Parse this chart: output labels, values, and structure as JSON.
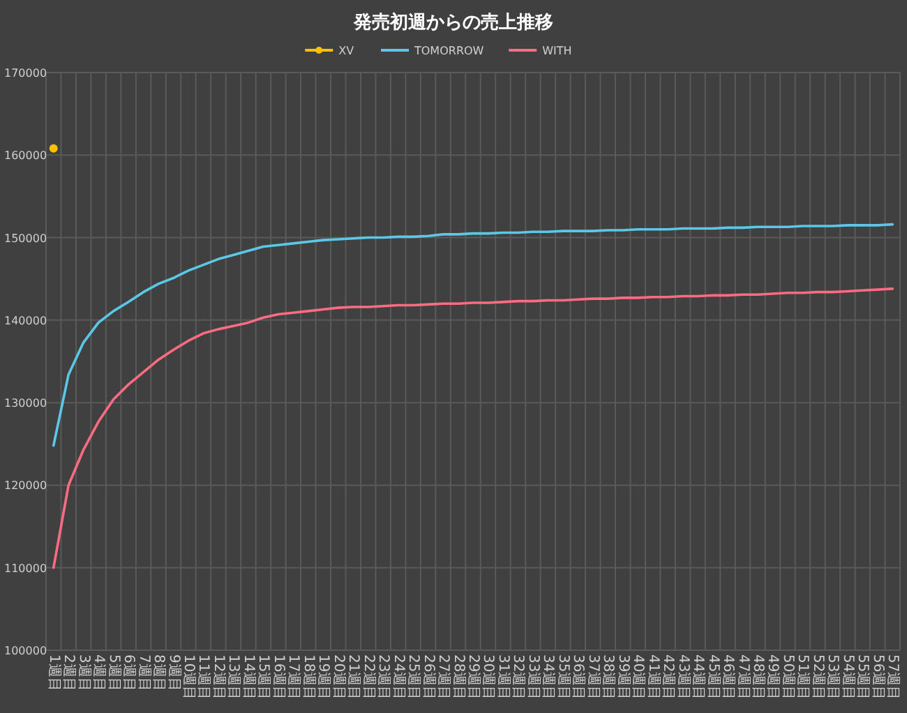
{
  "chart_data": {
    "type": "line",
    "title": "発売初週からの売上推移",
    "categories": [
      "1週目",
      "2週目",
      "3週目",
      "4週目",
      "5週目",
      "6週目",
      "7週目",
      "8週目",
      "9週目",
      "10週目",
      "11週目",
      "12週目",
      "13週目",
      "14週目",
      "15週目",
      "16週目",
      "17週目",
      "18週目",
      "19週目",
      "20週目",
      "21週目",
      "22週目",
      "23週目",
      "24週目",
      "25週目",
      "26週目",
      "27週目",
      "28週目",
      "29週目",
      "30週目",
      "31週目",
      "32週目",
      "33週目",
      "34週目",
      "35週目",
      "36週目",
      "37週目",
      "38週目",
      "39週目",
      "40週目",
      "41週目",
      "42週目",
      "43週目",
      "44週目",
      "45週目",
      "46週目",
      "47週目",
      "48週目",
      "49週目",
      "50週目",
      "51週目",
      "52週目",
      "53週目",
      "54週目",
      "55週目",
      "56週目",
      "57週目"
    ],
    "series": [
      {
        "name": "XV",
        "color": "#ffc000",
        "marker": "circle",
        "values": [
          160800,
          null,
          null,
          null,
          null,
          null,
          null,
          null,
          null,
          null,
          null,
          null,
          null,
          null,
          null,
          null,
          null,
          null,
          null,
          null,
          null,
          null,
          null,
          null,
          null,
          null,
          null,
          null,
          null,
          null,
          null,
          null,
          null,
          null,
          null,
          null,
          null,
          null,
          null,
          null,
          null,
          null,
          null,
          null,
          null,
          null,
          null,
          null,
          null,
          null,
          null,
          null,
          null,
          null,
          null,
          null,
          null
        ]
      },
      {
        "name": "TOMORROW",
        "color": "#5bc8e8",
        "marker": "none",
        "values": [
          124800,
          133400,
          137300,
          139700,
          141100,
          142200,
          143400,
          144400,
          145100,
          146000,
          146700,
          147400,
          147900,
          148400,
          148900,
          149100,
          149300,
          149500,
          149700,
          149800,
          149900,
          150000,
          150000,
          150100,
          150100,
          150200,
          150400,
          150400,
          150500,
          150500,
          150600,
          150600,
          150700,
          150700,
          150800,
          150800,
          150800,
          150900,
          150900,
          151000,
          151000,
          151000,
          151100,
          151100,
          151100,
          151200,
          151200,
          151300,
          151300,
          151300,
          151400,
          151400,
          151400,
          151500,
          151500,
          151500,
          151600
        ]
      },
      {
        "name": "WITH",
        "color": "#ff6b81",
        "marker": "none",
        "values": [
          110000,
          120000,
          124300,
          127700,
          130400,
          132200,
          133700,
          135200,
          136400,
          137500,
          138400,
          138900,
          139300,
          139700,
          140300,
          140700,
          140900,
          141100,
          141300,
          141500,
          141600,
          141600,
          141700,
          141800,
          141800,
          141900,
          142000,
          142000,
          142100,
          142100,
          142200,
          142300,
          142300,
          142400,
          142400,
          142500,
          142600,
          142600,
          142700,
          142700,
          142800,
          142800,
          142900,
          142900,
          143000,
          143000,
          143100,
          143100,
          143200,
          143300,
          143300,
          143400,
          143400,
          143500,
          143600,
          143700,
          143800
        ]
      }
    ],
    "ylim": [
      100000,
      170000
    ],
    "yticks": [
      100000,
      110000,
      120000,
      130000,
      140000,
      150000,
      160000,
      170000
    ],
    "grid": true,
    "legend": "top"
  }
}
